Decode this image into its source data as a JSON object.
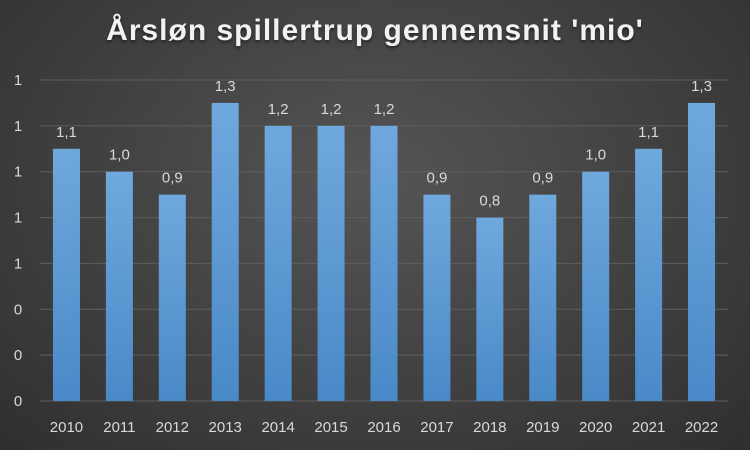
{
  "chart_data": {
    "type": "bar",
    "title": "Årsløn spillertrup gennemsnit 'mio'",
    "xlabel": "",
    "ylabel": "",
    "categories": [
      "2010",
      "2011",
      "2012",
      "2013",
      "2014",
      "2015",
      "2016",
      "2017",
      "2018",
      "2019",
      "2020",
      "2021",
      "2022"
    ],
    "values": [
      1.1,
      1.0,
      0.9,
      1.3,
      1.2,
      1.2,
      1.2,
      0.9,
      0.8,
      0.9,
      1.0,
      1.1,
      1.3
    ],
    "data_labels": [
      "1,1",
      "1,0",
      "0,9",
      "1,3",
      "1,2",
      "1,2",
      "1,2",
      "0,9",
      "0,8",
      "0,9",
      "1,0",
      "1,1",
      "1,3"
    ],
    "y_ticks": [
      0,
      0.2,
      0.4,
      0.6,
      0.8,
      1.0,
      1.2,
      1.4
    ],
    "y_tick_labels": [
      "0",
      "0",
      "0",
      "1",
      "1",
      "1",
      "1",
      "1"
    ],
    "ylim": [
      0,
      1.4
    ],
    "grid": true,
    "legend": "none",
    "colors": {
      "bar_top": "#6fa8dc",
      "bar_bottom": "#4a89c8",
      "text": "#d9d9d9",
      "title": "#f2f2f2",
      "grid": "#5e5e5e"
    }
  }
}
